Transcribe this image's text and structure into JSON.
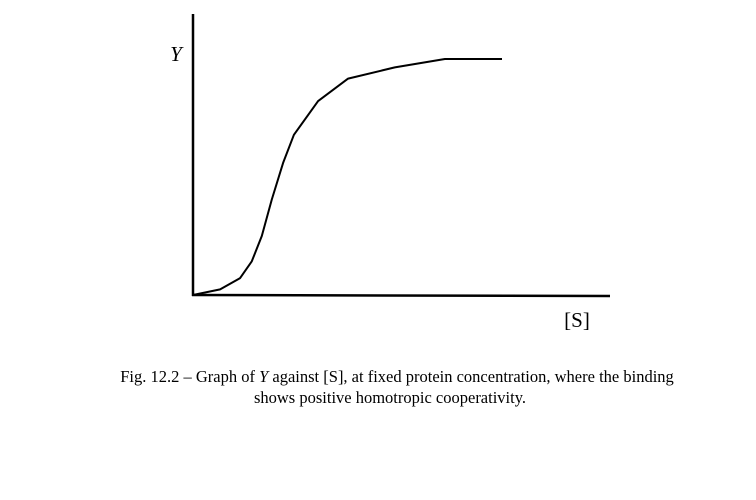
{
  "chart_data": {
    "type": "line",
    "ylabel": "Y",
    "xlabel": "[S]",
    "caption": [
      "Fig. 12.2 – Graph of ",
      "Y",
      " against [S], at fixed protein concentration, where the binding",
      "shows positive homotropic cooperativity."
    ],
    "x": [
      0,
      0.65,
      1.13,
      1.41,
      1.65,
      1.89,
      2.16,
      2.42,
      3.0,
      3.72,
      4.84,
      6.04,
      7.41
    ],
    "values": [
      0,
      0.02,
      0.06,
      0.12,
      0.21,
      0.34,
      0.47,
      0.57,
      0.69,
      0.77,
      0.81,
      0.84,
      0.84
    ],
    "color": "#000000",
    "xlim": [
      0,
      10
    ],
    "ylim": [
      0,
      1
    ]
  }
}
